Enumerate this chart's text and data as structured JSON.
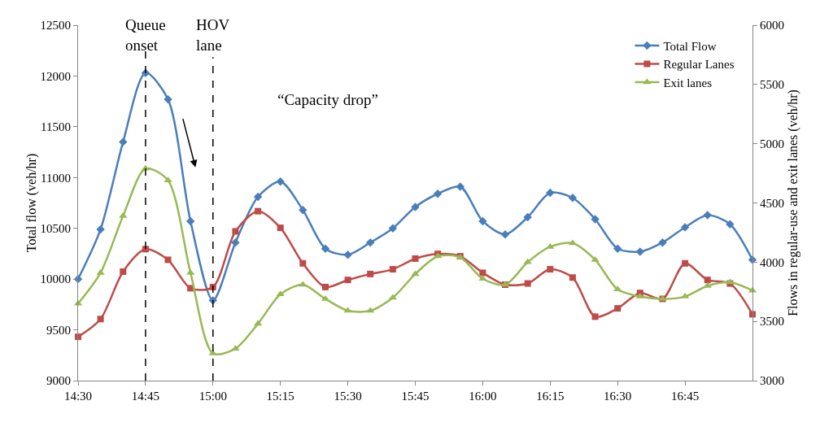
{
  "chart_data": {
    "type": "line",
    "xlabel": null,
    "ylabel": "Total flow (veh/hr)",
    "y2label": "Flows in regular-use and exit lanes (veh/hr)",
    "x": [
      14.5,
      14.5833,
      14.6667,
      14.75,
      14.8333,
      14.9167,
      15,
      15.0833,
      15.1667,
      15.25,
      15.3333,
      15.4167,
      15.5,
      15.5833,
      15.6667,
      15.75,
      15.8333,
      15.9167,
      16,
      16.0833,
      16.1667,
      16.25,
      16.3333,
      16.4167,
      16.5,
      16.5833,
      16.6667,
      16.75,
      16.8333,
      16.9167,
      17
    ],
    "series": [
      {
        "name": "Total Flow",
        "color": "#4a7ebb",
        "marker": "diamond",
        "values": [
          10000,
          10490,
          11350,
          12030,
          11770,
          10570,
          9790,
          10360,
          10810,
          10960,
          10680,
          10300,
          10240,
          10360,
          10500,
          10710,
          10840,
          10910,
          10570,
          10440,
          10610,
          10850,
          10800,
          10590,
          10300,
          10270,
          10360,
          10510,
          10630,
          10540,
          10190
        ]
      },
      {
        "name": "Regular Lanes",
        "color": "#be4b48",
        "marker": "square",
        "axis": "y2",
        "values": [
          3370,
          3520,
          3920,
          4110,
          4020,
          3780,
          3790,
          4260,
          4430,
          4290,
          3990,
          3790,
          3850,
          3900,
          3940,
          4030,
          4070,
          4050,
          3910,
          3810,
          3820,
          3940,
          3870,
          3540,
          3610,
          3740,
          3690,
          3990,
          3850,
          3820,
          3560
        ]
      },
      {
        "name": "Exit lanes",
        "color": "#98b954",
        "marker": "triangle",
        "axis": "y2",
        "values": [
          3650,
          3910,
          4390,
          4790,
          4690,
          3910,
          3230,
          3270,
          3480,
          3730,
          3810,
          3690,
          3590,
          3590,
          3700,
          3900,
          4050,
          4040,
          3860,
          3810,
          4000,
          4130,
          4160,
          4020,
          3770,
          3710,
          3690,
          3710,
          3800,
          3830,
          3760
        ]
      }
    ],
    "xlim": [
      14.5,
      17
    ],
    "xticks": [
      {
        "value": 14.5,
        "label": "14:30"
      },
      {
        "value": 14.75,
        "label": "14:45"
      },
      {
        "value": 15,
        "label": "15:00"
      },
      {
        "value": 15.25,
        "label": "15:15"
      },
      {
        "value": 15.5,
        "label": "15:30"
      },
      {
        "value": 15.75,
        "label": "15:45"
      },
      {
        "value": 16,
        "label": "16:00"
      },
      {
        "value": 16.25,
        "label": "16:15"
      },
      {
        "value": 16.5,
        "label": "16:30"
      },
      {
        "value": 16.75,
        "label": "16:45"
      }
    ],
    "ylim": [
      9000,
      12500
    ],
    "yticks": [
      9000,
      9500,
      10000,
      10500,
      11000,
      11500,
      12000,
      12500
    ],
    "y2lim": [
      3000,
      6000
    ],
    "y2ticks": [
      3000,
      3500,
      4000,
      4500,
      5000,
      5500,
      6000
    ],
    "ref_lines": [
      {
        "axis": "x",
        "value": 14.75,
        "label": "Queue onset",
        "line_style": "dashed",
        "color": "#000000"
      },
      {
        "axis": "x",
        "value": 15,
        "label": "HOV lane",
        "line_style": "dashed",
        "color": "#000000"
      }
    ],
    "annotations": [
      "“Capacity drop”"
    ],
    "grid": false,
    "legend": "top right",
    "line_style": "solid"
  }
}
